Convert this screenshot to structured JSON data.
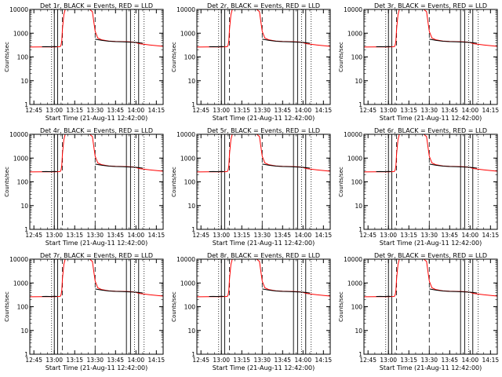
{
  "chart_data": {
    "type": "line",
    "xlabel": "Start Time (21-Aug-11 12:42:00)",
    "ylabel": "Counts/sec",
    "x_tick_labels": [
      "12:45",
      "13:00",
      "13:15",
      "13:30",
      "13:45",
      "14:00",
      "14:15"
    ],
    "x_tick_minutes": [
      45,
      60,
      75,
      90,
      105,
      120,
      135
    ],
    "xlim_minutes": [
      42,
      140
    ],
    "y_scale": "log",
    "ylim": [
      1,
      10000
    ],
    "y_tick_labels": [
      "1",
      "10",
      "100",
      "1000",
      "10000"
    ],
    "y_tick_values": [
      1,
      10,
      100,
      1000,
      10000
    ],
    "colors": {
      "events": "#000000",
      "lld": "#ff0000"
    },
    "panels": [
      {
        "title": "Det 1r, BLACK = Events, RED = LLD"
      },
      {
        "title": "Det 2r, BLACK = Events, RED = LLD"
      },
      {
        "title": "Det 3r, BLACK = Events, RED = LLD"
      },
      {
        "title": "Det 4r, BLACK = Events, RED = LLD"
      },
      {
        "title": "Det 5r, BLACK = Events, RED = LLD"
      },
      {
        "title": "Det 6r, BLACK = Events, RED = LLD"
      },
      {
        "title": "Det 7r, BLACK = Events, RED = LLD"
      },
      {
        "title": "Det 8r, BLACK = Events, RED = LLD"
      },
      {
        "title": "Det 9r, BLACK = Events, RED = LLD"
      }
    ],
    "series": [
      {
        "color": "#ff0000",
        "x_minutes": [
          42,
          50,
          60,
          64,
          64.5,
          65,
          65.5,
          66,
          67,
          68,
          70,
          72,
          74,
          76,
          78,
          80,
          82,
          84,
          86,
          88,
          90,
          92,
          95,
          100,
          105,
          110,
          115,
          118,
          120,
          123,
          126,
          130,
          135,
          140
        ],
        "y": [
          260,
          262,
          265,
          268,
          280,
          320,
          500,
          1500,
          6000,
          10000,
          10000,
          10000,
          10000,
          10000,
          10000,
          10000,
          10000,
          10000,
          10000,
          8000,
          1200,
          620,
          520,
          470,
          450,
          440,
          430,
          420,
          400,
          360,
          340,
          320,
          300,
          280
        ]
      },
      {
        "color": "#000000",
        "segments": [
          {
            "x_minutes": [
              51,
              54,
              57,
              60,
              62
            ],
            "y": [
              270,
              272,
              270,
              274,
              272
            ]
          },
          {
            "x_minutes": [
              90,
              95,
              100,
              105,
              110,
              115,
              120,
              125
            ],
            "y": [
              560,
              500,
              460,
              440,
              430,
              420,
              410,
              380
            ]
          }
        ]
      }
    ],
    "vertical_lines": {
      "solid_minutes": [
        60,
        62.5,
        113,
        116,
        122
      ],
      "dashed_minutes": [
        66,
        90
      ],
      "dotted_minutes": [
        58,
        119,
        126
      ]
    }
  }
}
